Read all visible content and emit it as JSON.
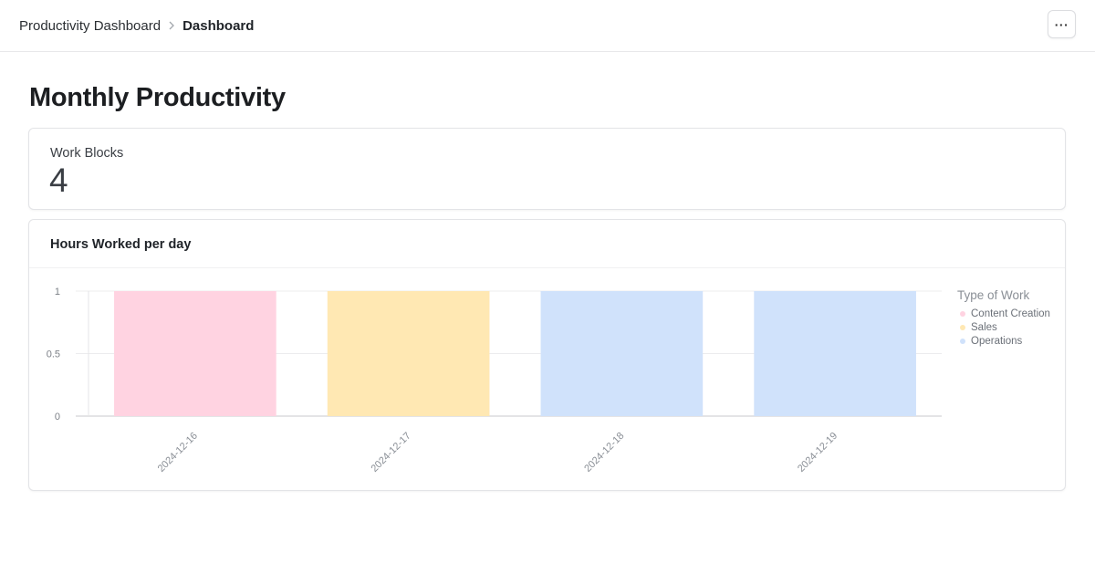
{
  "breadcrumb": {
    "parent": "Productivity Dashboard",
    "current": "Dashboard"
  },
  "header": {
    "more_label": "···"
  },
  "page": {
    "title": "Monthly Productivity"
  },
  "stat": {
    "label": "Work Blocks",
    "value": "4"
  },
  "chart_card": {
    "title": "Hours Worked per day"
  },
  "legend": {
    "title": "Type of Work",
    "items": [
      {
        "label": "Content Creation",
        "color": "#ffd3e1"
      },
      {
        "label": "Sales",
        "color": "#ffe8b3"
      },
      {
        "label": "Operations",
        "color": "#d0e2fb"
      }
    ]
  },
  "chart_data": {
    "type": "bar",
    "categories": [
      "2024-12-16",
      "2024-12-17",
      "2024-12-18",
      "2024-12-19"
    ],
    "values": [
      1,
      1,
      1,
      1
    ],
    "bar_types": [
      "Content Creation",
      "Sales",
      "Operations",
      "Operations"
    ],
    "bar_colors": [
      "#ffd3e1",
      "#ffe8b3",
      "#d0e2fb",
      "#d0e2fb"
    ],
    "yticks": [
      "0",
      "0.5",
      "1"
    ],
    "ylim": [
      0,
      1
    ],
    "grid": true,
    "legend_position": "right"
  }
}
